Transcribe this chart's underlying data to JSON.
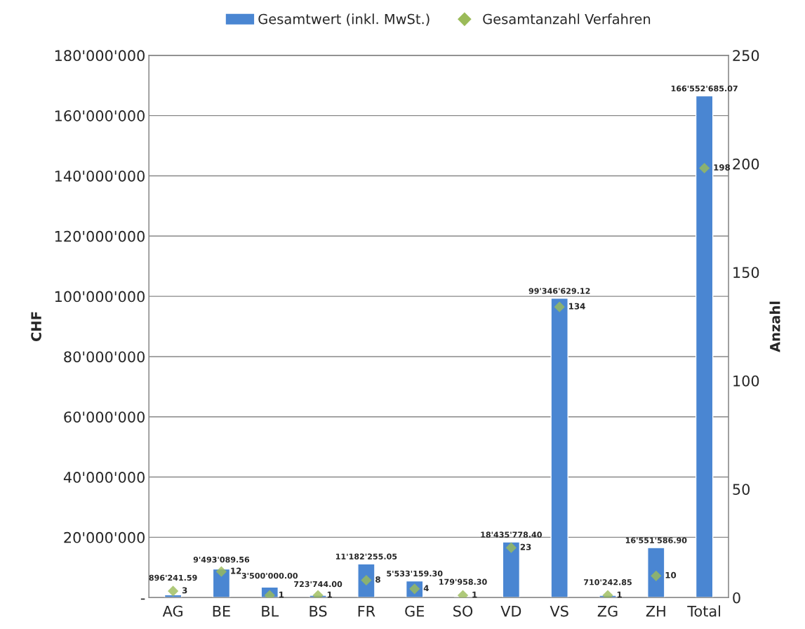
{
  "chart_data": {
    "type": "bar",
    "categories": [
      "AG",
      "BE",
      "BL",
      "BS",
      "FR",
      "GE",
      "SO",
      "VD",
      "VS",
      "ZG",
      "ZH",
      "Total"
    ],
    "series": [
      {
        "name": "Gesamtwert (inkl. MwSt.)",
        "color": "#4a86d2",
        "values": [
          896241.59,
          9493089.56,
          3500000.0,
          723744.0,
          11182255.05,
          5533159.3,
          179958.3,
          18435778.4,
          99346629.12,
          710242.85,
          16551586.9,
          166552685.07
        ],
        "value_labels": [
          "896'241.59",
          "9'493'089.56",
          "3'500'000.00",
          "723'744.00",
          "11'182'255.05",
          "5'533'159.30",
          "179'958.30",
          "18'435'778.40",
          "99'346'629.12",
          "710'242.85",
          "16'551'586.90",
          "166'552'685.07"
        ]
      },
      {
        "name": "Gesamtanzahl Verfahren",
        "type": "scatter",
        "axis": "y2",
        "marker": "diamond",
        "color": "#9bbb59",
        "values": [
          3,
          12,
          1,
          1,
          8,
          4,
          1,
          23,
          134,
          1,
          10,
          198
        ],
        "data_labels": true
      }
    ],
    "ylabel": "CHF",
    "y2label": "Anzahl",
    "ylim": [
      0,
      180000000
    ],
    "yticks": [
      {
        "value": 0,
        "label": "-"
      },
      {
        "value": 20000000,
        "label": "20'000'000"
      },
      {
        "value": 40000000,
        "label": "40'000'000"
      },
      {
        "value": 60000000,
        "label": "60'000'000"
      },
      {
        "value": 80000000,
        "label": "80'000'000"
      },
      {
        "value": 100000000,
        "label": "100'000'000"
      },
      {
        "value": 120000000,
        "label": "120'000'000"
      },
      {
        "value": 140000000,
        "label": "140'000'000"
      },
      {
        "value": 160000000,
        "label": "160'000'000"
      },
      {
        "value": 180000000,
        "label": "180'000'000"
      }
    ],
    "y2lim": [
      0,
      250
    ],
    "y2ticks": [
      0,
      50,
      100,
      150,
      200,
      250
    ],
    "grid": "y",
    "legend": "top"
  }
}
